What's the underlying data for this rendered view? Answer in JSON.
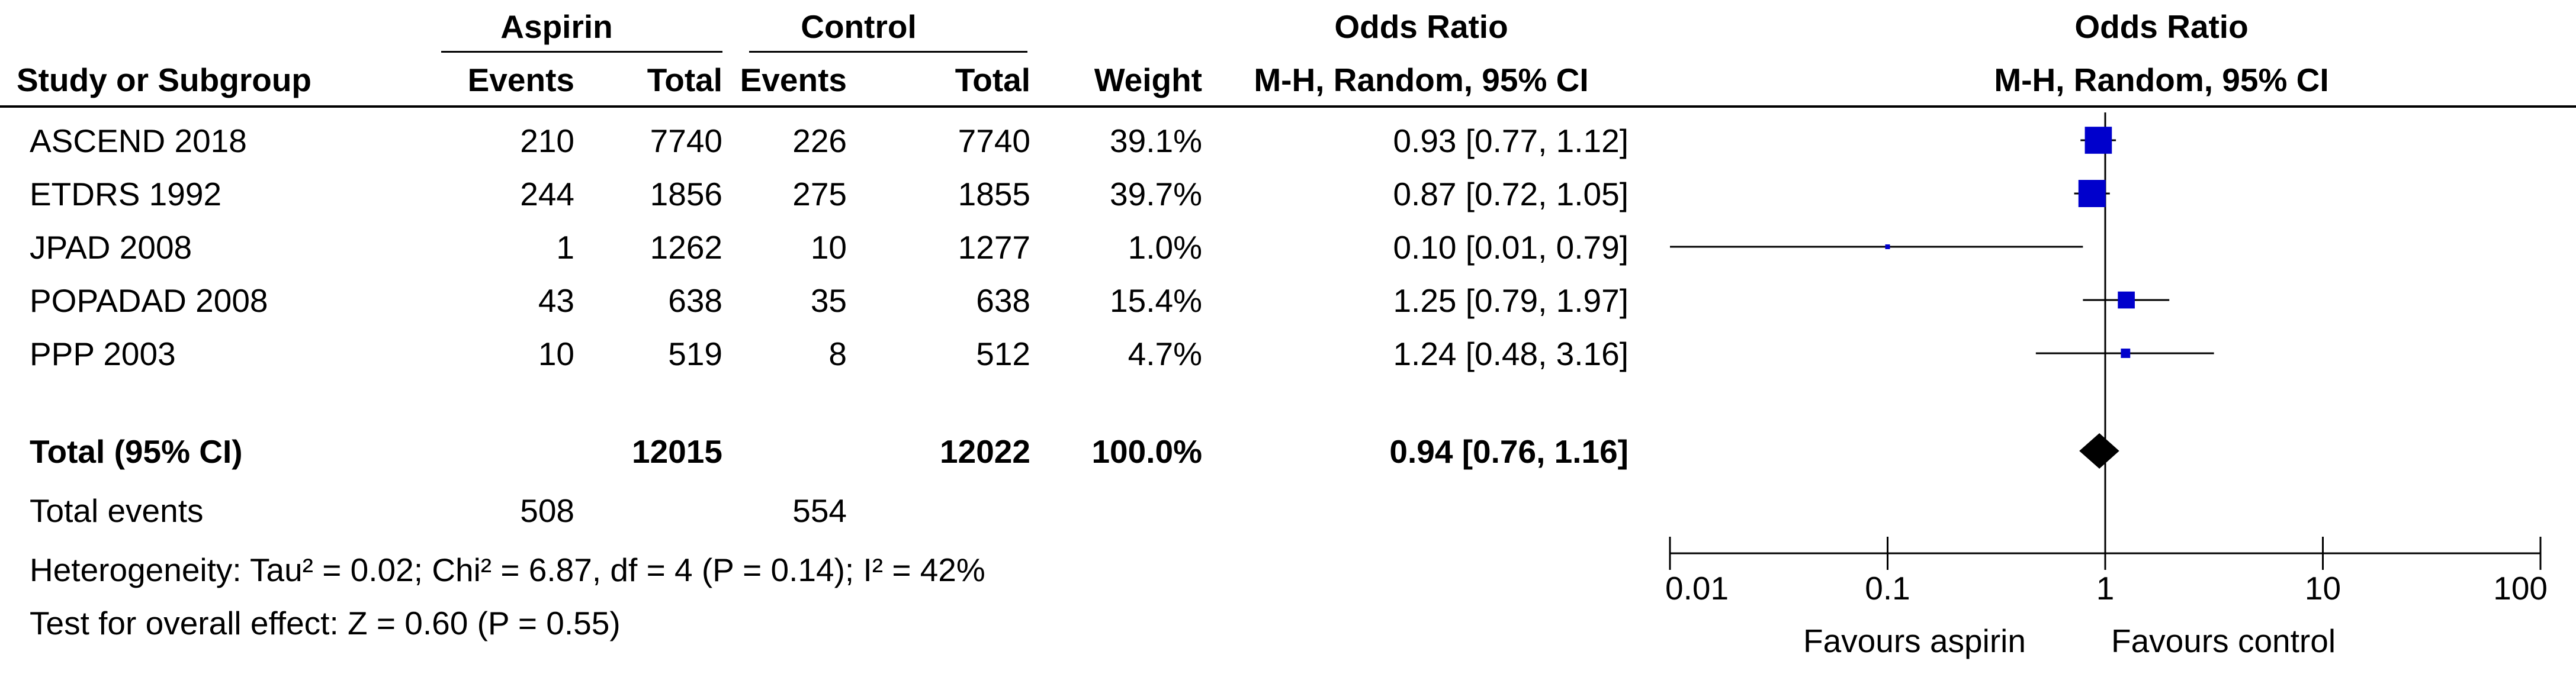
{
  "header": {
    "group_aspirin": "Aspirin",
    "group_control": "Control",
    "or_col_title": "Odds Ratio",
    "or_col_method": "M-H, Random, 95% CI",
    "plot_title": "Odds Ratio",
    "plot_method": "M-H, Random, 95% CI",
    "study_col": "Study or Subgroup",
    "events": "Events",
    "total": "Total",
    "weight": "Weight"
  },
  "studies": [
    {
      "name": "ASCEND 2018",
      "a_events": "210",
      "a_total": "7740",
      "c_events": "226",
      "c_total": "7740",
      "weight": "39.1%",
      "ci_text": "0.93 [0.77, 1.12]"
    },
    {
      "name": "ETDRS 1992",
      "a_events": "244",
      "a_total": "1856",
      "c_events": "275",
      "c_total": "1855",
      "weight": "39.7%",
      "ci_text": "0.87 [0.72, 1.05]"
    },
    {
      "name": "JPAD 2008",
      "a_events": "1",
      "a_total": "1262",
      "c_events": "10",
      "c_total": "1277",
      "weight": "1.0%",
      "ci_text": "0.10 [0.01, 0.79]"
    },
    {
      "name": "POPADAD 2008",
      "a_events": "43",
      "a_total": "638",
      "c_events": "35",
      "c_total": "638",
      "weight": "15.4%",
      "ci_text": "1.25 [0.79, 1.97]"
    },
    {
      "name": "PPP 2003",
      "a_events": "10",
      "a_total": "519",
      "c_events": "8",
      "c_total": "512",
      "weight": "4.7%",
      "ci_text": "1.24 [0.48, 3.16]"
    }
  ],
  "total": {
    "label": "Total (95% CI)",
    "a_total": "12015",
    "c_total": "12022",
    "weight": "100.0%",
    "ci_text": "0.94 [0.76, 1.16]"
  },
  "total_events": {
    "label": "Total events",
    "aspirin": "508",
    "control": "554"
  },
  "heterogeneity": "Heterogeneity: Tau² = 0.02; Chi² = 6.87, df = 4 (P = 0.14); I² = 42%",
  "overall_effect": "Test for overall effect: Z = 0.60 (P = 0.55)",
  "axis": {
    "favours_left": "Favours aspirin",
    "favours_right": "Favours control"
  },
  "colors": {
    "marker": "#0000cc",
    "text": "#000000"
  },
  "chart_data": {
    "type": "forest",
    "scale": "log",
    "xlim": [
      0.01,
      100
    ],
    "ticks": [
      {
        "value": 0.01,
        "label": "0.01"
      },
      {
        "value": 0.1,
        "label": "0.1"
      },
      {
        "value": 1,
        "label": "1"
      },
      {
        "value": 10,
        "label": "10"
      },
      {
        "value": 100,
        "label": "100"
      }
    ],
    "reference_value": 1,
    "studies": [
      {
        "name": "ASCEND 2018",
        "or": 0.93,
        "lower": 0.77,
        "upper": 1.12,
        "weight": 39.1
      },
      {
        "name": "ETDRS 1992",
        "or": 0.87,
        "lower": 0.72,
        "upper": 1.05,
        "weight": 39.7
      },
      {
        "name": "JPAD 2008",
        "or": 0.1,
        "lower": 0.01,
        "upper": 0.79,
        "weight": 1.0
      },
      {
        "name": "POPADAD 2008",
        "or": 1.25,
        "lower": 0.79,
        "upper": 1.97,
        "weight": 15.4
      },
      {
        "name": "PPP 2003",
        "or": 1.24,
        "lower": 0.48,
        "upper": 3.16,
        "weight": 4.7
      }
    ],
    "pooled": {
      "or": 0.94,
      "lower": 0.76,
      "upper": 1.16
    }
  }
}
